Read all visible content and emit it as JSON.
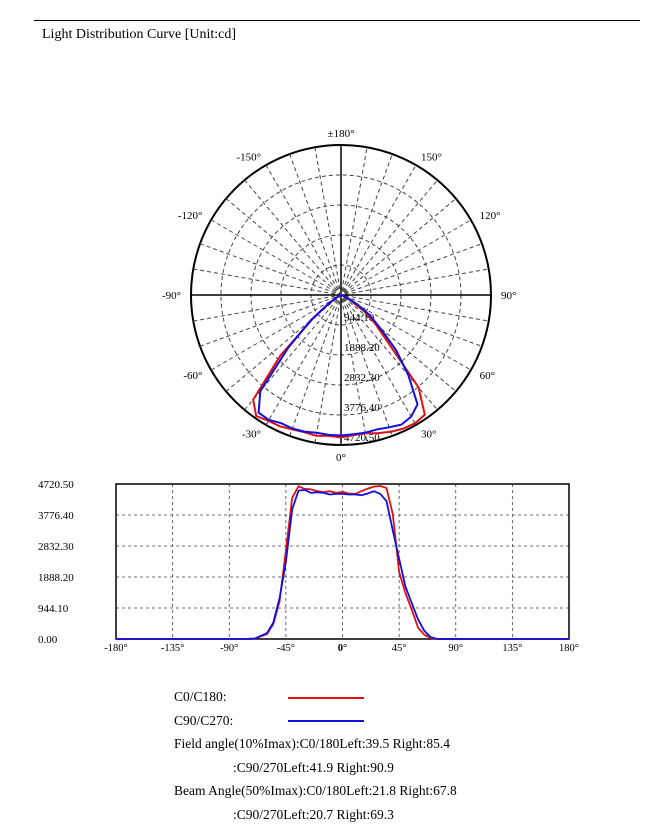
{
  "title": "Light Distribution Curve [Unit:cd]",
  "colors": {
    "c0": "#e01010",
    "c90": "#1010e0",
    "grid": "#444444"
  },
  "chart_data": [
    {
      "type": "polar",
      "angle_labels": [
        {
          "text": "0°",
          "angle": 0
        },
        {
          "text": "30°",
          "angle": 30
        },
        {
          "text": "60°",
          "angle": 60
        },
        {
          "text": "90°",
          "angle": 90
        },
        {
          "text": "120°",
          "angle": 120
        },
        {
          "text": "150°",
          "angle": 150
        },
        {
          "text": "±180°",
          "angle": 180
        },
        {
          "text": "-30°",
          "angle": -30
        },
        {
          "text": "-60°",
          "angle": -60
        },
        {
          "text": "-90°",
          "angle": -90
        },
        {
          "text": "-120°",
          "angle": -120
        },
        {
          "text": "-150°",
          "angle": -150
        }
      ],
      "radial_labels": [
        "944.10",
        "1888.20",
        "2832.30",
        "3776.40",
        "4720.50"
      ],
      "radial_max": 4720.5,
      "series": [
        {
          "name": "C0/C180",
          "angles": [
            -90,
            -80,
            -70,
            -60,
            -55,
            -50,
            -45,
            -40,
            -35,
            -30,
            -25,
            -20,
            -15,
            -10,
            -5,
            0,
            5,
            10,
            15,
            20,
            25,
            30,
            35,
            40,
            45,
            50,
            55,
            60,
            65,
            70,
            75,
            80,
            90
          ],
          "values": [
            0,
            0,
            10,
            150,
            450,
            1150,
            2700,
            4300,
            4650,
            4570,
            4560,
            4500,
            4470,
            4500,
            4450,
            4480,
            4430,
            4420,
            4500,
            4580,
            4640,
            4660,
            4600,
            3800,
            2050,
            1400,
            900,
            350,
            130,
            30,
            0,
            0,
            0
          ]
        },
        {
          "name": "C90/C270",
          "angles": [
            -90,
            -80,
            -70,
            -60,
            -55,
            -50,
            -45,
            -40,
            -35,
            -30,
            -25,
            -20,
            -15,
            -10,
            -5,
            0,
            5,
            10,
            15,
            20,
            25,
            30,
            35,
            40,
            45,
            50,
            55,
            60,
            65,
            70,
            75,
            80,
            90
          ],
          "values": [
            0,
            0,
            10,
            180,
            500,
            1250,
            2350,
            3950,
            4520,
            4540,
            4450,
            4470,
            4450,
            4400,
            4420,
            4420,
            4400,
            4400,
            4380,
            4430,
            4500,
            4420,
            4200,
            3300,
            2450,
            1600,
            1100,
            600,
            250,
            60,
            0,
            0,
            0
          ]
        }
      ]
    },
    {
      "type": "line",
      "xticks": [
        "-180°",
        "-135°",
        "-90°",
        "-45°",
        "0°",
        "45°",
        "90°",
        "135°",
        "180°"
      ],
      "yticks": [
        "4720.50",
        "3776.40",
        "2832.30",
        "1888.20",
        "944.10",
        "0.00"
      ],
      "xlim": [
        -180,
        180
      ],
      "ylim": [
        0,
        4720.5
      ],
      "grid": true,
      "series": [
        {
          "name": "C0/C180",
          "x": [
            -180,
            -90,
            -80,
            -70,
            -60,
            -55,
            -50,
            -45,
            -40,
            -35,
            -30,
            -25,
            -20,
            -15,
            -10,
            -5,
            0,
            5,
            10,
            15,
            20,
            25,
            30,
            35,
            40,
            45,
            50,
            55,
            60,
            65,
            70,
            75,
            80,
            180
          ],
          "y": [
            0,
            0,
            0,
            10,
            150,
            450,
            1150,
            2700,
            4300,
            4650,
            4570,
            4560,
            4500,
            4470,
            4500,
            4450,
            4480,
            4430,
            4420,
            4500,
            4580,
            4640,
            4660,
            4600,
            3800,
            2050,
            1400,
            900,
            350,
            130,
            30,
            0,
            0,
            0
          ]
        },
        {
          "name": "C90/C270",
          "x": [
            -180,
            -90,
            -80,
            -70,
            -60,
            -55,
            -50,
            -45,
            -40,
            -35,
            -30,
            -25,
            -20,
            -15,
            -10,
            -5,
            0,
            5,
            10,
            15,
            20,
            25,
            30,
            35,
            40,
            45,
            50,
            55,
            60,
            65,
            70,
            75,
            80,
            180
          ],
          "y": [
            0,
            0,
            0,
            10,
            180,
            500,
            1250,
            2350,
            3950,
            4520,
            4540,
            4450,
            4470,
            4450,
            4400,
            4420,
            4420,
            4400,
            4400,
            4380,
            4430,
            4500,
            4420,
            4200,
            3300,
            2450,
            1600,
            1100,
            600,
            250,
            60,
            0,
            0,
            0
          ]
        }
      ]
    }
  ],
  "legend": [
    {
      "label": "C0/C180:",
      "color": "#e01010"
    },
    {
      "label": "C90/C270:",
      "color": "#1010e0"
    }
  ],
  "info": {
    "field_line1": "Field angle(10%Imax):C0/180Left:39.5 Right:85.4",
    "field_line2": ":C90/270Left:41.9 Right:90.9",
    "beam_line1": "Beam Angle(50%Imax):C0/180Left:21.8 Right:67.8",
    "beam_line2": ":C90/270Left:20.7 Right:69.3"
  }
}
